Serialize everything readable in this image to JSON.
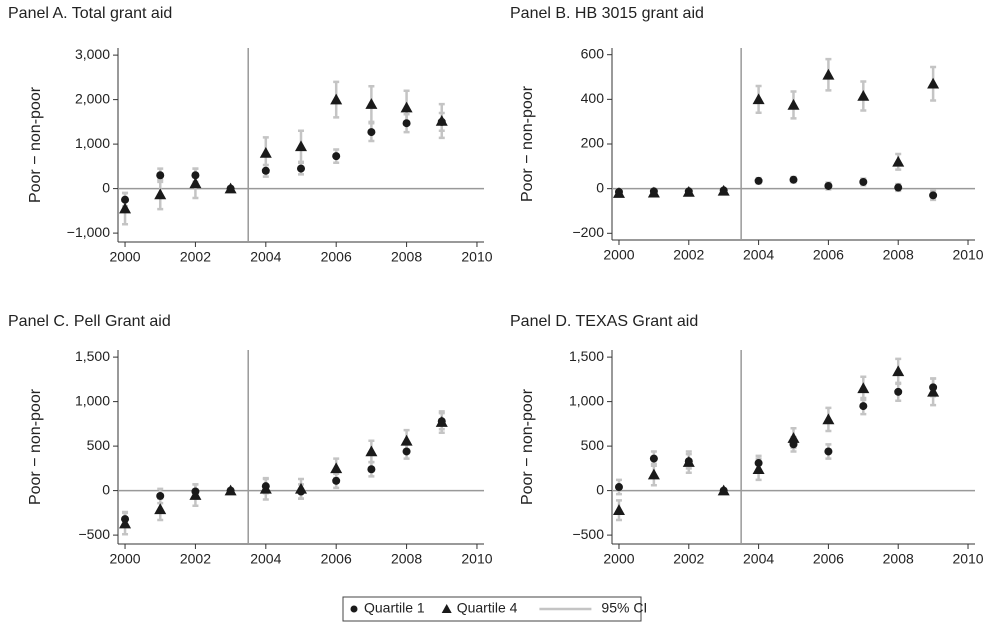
{
  "chart_data": [
    {
      "type": "scatter",
      "title": "Panel A. Total grant aid",
      "y_label": "Poor − non-poor",
      "x": [
        2000,
        2001,
        2002,
        2003,
        2004,
        2005,
        2006,
        2007,
        2008,
        2009
      ],
      "series": [
        {
          "name": "Quartile 1",
          "marker": "circle",
          "color": "#1a1a1a",
          "values": [
            -250,
            300,
            300,
            0,
            400,
            450,
            730,
            1270,
            1470,
            1500
          ],
          "errors": [
            150,
            150,
            150,
            0,
            130,
            130,
            150,
            200,
            200,
            200
          ]
        },
        {
          "name": "Quartile 4",
          "marker": "triangle",
          "color": "#1a1a1a",
          "values": [
            -450,
            -130,
            120,
            0,
            800,
            950,
            2000,
            1900,
            1820,
            1520
          ],
          "errors": [
            350,
            330,
            330,
            0,
            350,
            350,
            400,
            400,
            380,
            380
          ]
        }
      ],
      "xlim": [
        1999.8,
        2010.2
      ],
      "xticks": [
        2000,
        2002,
        2004,
        2006,
        2008,
        2010
      ],
      "ylim": [
        -1200,
        3160
      ],
      "yticks": [
        {
          "value": -1000,
          "label": "−1,000"
        },
        0,
        {
          "value": 1000,
          "label": "1,000"
        },
        {
          "value": 2000,
          "label": "2,000"
        },
        {
          "value": 3000,
          "label": "3,000"
        }
      ],
      "vline": 2003.5,
      "hline": 0
    },
    {
      "type": "scatter",
      "title": "Panel B. HB 3015 grant aid",
      "y_label": "Poor − non-poor",
      "x": [
        2000,
        2001,
        2002,
        2003,
        2004,
        2005,
        2006,
        2007,
        2008,
        2009
      ],
      "series": [
        {
          "name": "Quartile 1",
          "marker": "circle",
          "color": "#1a1a1a",
          "values": [
            -15,
            -12,
            -12,
            -8,
            35,
            40,
            12,
            30,
            5,
            -30
          ],
          "errors": [
            10,
            10,
            10,
            5,
            12,
            12,
            15,
            15,
            15,
            20
          ]
        },
        {
          "name": "Quartile 4",
          "marker": "triangle",
          "color": "#1a1a1a",
          "values": [
            -20,
            -18,
            -15,
            -10,
            400,
            375,
            510,
            415,
            120,
            470
          ],
          "errors": [
            12,
            12,
            12,
            8,
            60,
            60,
            70,
            65,
            35,
            75
          ]
        }
      ],
      "xlim": [
        1999.8,
        2010.2
      ],
      "xticks": [
        2000,
        2002,
        2004,
        2006,
        2008,
        2010
      ],
      "ylim": [
        -230,
        630
      ],
      "yticks": [
        {
          "value": -200,
          "label": "−200"
        },
        0,
        200,
        400,
        600
      ],
      "vline": 2003.5,
      "hline": 0
    },
    {
      "type": "scatter",
      "title": "Panel C. Pell Grant aid",
      "y_label": "Poor − non-poor",
      "x": [
        2000,
        2001,
        2002,
        2003,
        2004,
        2005,
        2006,
        2007,
        2008,
        2009
      ],
      "series": [
        {
          "name": "Quartile 1",
          "marker": "circle",
          "color": "#1a1a1a",
          "values": [
            -320,
            -60,
            -10,
            0,
            50,
            -10,
            110,
            240,
            440,
            780
          ],
          "errors": [
            80,
            80,
            80,
            0,
            80,
            80,
            80,
            80,
            80,
            90
          ]
        },
        {
          "name": "Quartile 4",
          "marker": "triangle",
          "color": "#1a1a1a",
          "values": [
            -370,
            -210,
            -50,
            0,
            20,
            20,
            250,
            440,
            560,
            770
          ],
          "errors": [
            120,
            120,
            120,
            0,
            120,
            110,
            110,
            120,
            120,
            120
          ]
        }
      ],
      "xlim": [
        1999.8,
        2010.2
      ],
      "xticks": [
        2000,
        2002,
        2004,
        2006,
        2008,
        2010
      ],
      "ylim": [
        -600,
        1580
      ],
      "yticks": [
        {
          "value": -500,
          "label": "−500"
        },
        0,
        500,
        {
          "value": 1000,
          "label": "1,000"
        },
        {
          "value": 1500,
          "label": "1,500"
        }
      ],
      "vline": 2003.5,
      "hline": 0
    },
    {
      "type": "scatter",
      "title": "Panel D. TEXAS Grant aid",
      "y_label": "Poor − non-poor",
      "x": [
        2000,
        2001,
        2002,
        2003,
        2004,
        2005,
        2006,
        2007,
        2008,
        2009
      ],
      "series": [
        {
          "name": "Quartile 1",
          "marker": "circle",
          "color": "#1a1a1a",
          "values": [
            40,
            360,
            330,
            0,
            310,
            520,
            440,
            950,
            1110,
            1160
          ],
          "errors": [
            80,
            80,
            80,
            0,
            80,
            80,
            80,
            90,
            100,
            100
          ]
        },
        {
          "name": "Quartile 4",
          "marker": "triangle",
          "color": "#1a1a1a",
          "values": [
            -220,
            180,
            320,
            0,
            240,
            590,
            800,
            1150,
            1340,
            1110
          ],
          "errors": [
            110,
            120,
            120,
            0,
            120,
            110,
            130,
            130,
            140,
            150
          ]
        }
      ],
      "xlim": [
        1999.8,
        2010.2
      ],
      "xticks": [
        2000,
        2002,
        2004,
        2006,
        2008,
        2010
      ],
      "ylim": [
        -600,
        1580
      ],
      "yticks": [
        {
          "value": -500,
          "label": "−500"
        },
        0,
        500,
        {
          "value": 1000,
          "label": "1,000"
        },
        {
          "value": 1500,
          "label": "1,500"
        }
      ],
      "vline": 2003.5,
      "hline": 0
    }
  ],
  "legend": {
    "ci_label": "95% CI"
  }
}
